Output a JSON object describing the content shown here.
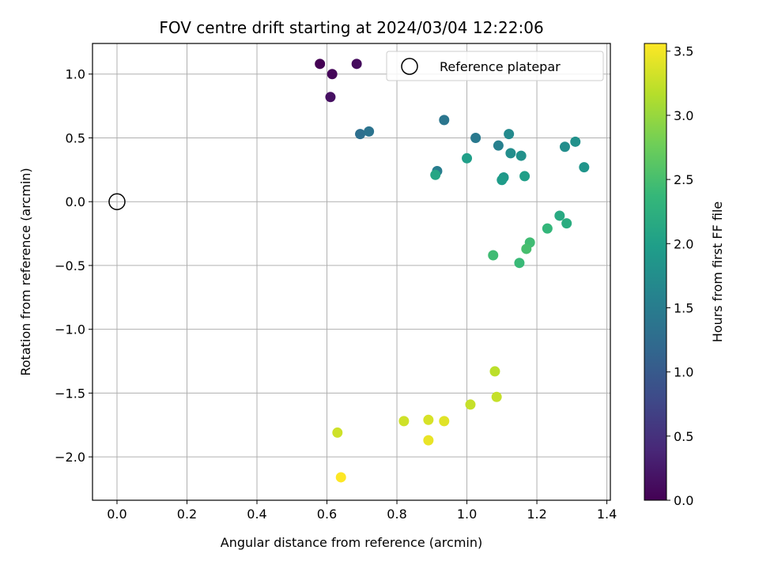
{
  "chart_data": {
    "type": "scatter",
    "title": "FOV centre drift starting at 2024/03/04 12:22:06",
    "xlabel": "Angular distance from reference (arcmin)",
    "ylabel": "Rotation from reference (arcmin)",
    "xlim": [
      -0.07,
      1.41
    ],
    "ylim": [
      -2.34,
      1.24
    ],
    "xticks": [
      0.0,
      0.2,
      0.4,
      0.6,
      0.8,
      1.0,
      1.2,
      1.4
    ],
    "xtick_labels": [
      "0.0",
      "0.2",
      "0.4",
      "0.6",
      "0.8",
      "1.0",
      "1.2",
      "1.4"
    ],
    "yticks": [
      1.0,
      0.5,
      0.0,
      -0.5,
      -1.0,
      -1.5,
      -2.0
    ],
    "ytick_labels": [
      "1.0",
      "0.5",
      "0.0",
      "−0.5",
      "−1.0",
      "−1.5",
      "−2.0"
    ],
    "grid": true,
    "legend_position": "top-right",
    "reference": {
      "label": "Reference platepar",
      "x": 0.0,
      "y": 0.0
    },
    "colorbar": {
      "label": "Hours from first FF file",
      "range": [
        0.0,
        3.56
      ],
      "ticks": [
        0.0,
        0.5,
        1.0,
        1.5,
        2.0,
        2.5,
        3.0,
        3.5
      ],
      "tick_labels": [
        "0.0",
        "0.5",
        "1.0",
        "1.5",
        "2.0",
        "2.5",
        "3.0",
        "3.5"
      ],
      "colormap": "viridis"
    },
    "points": [
      {
        "x": 0.58,
        "y": 1.08,
        "h": 0.0
      },
      {
        "x": 0.615,
        "y": 1.0,
        "h": 0.05
      },
      {
        "x": 0.685,
        "y": 1.08,
        "h": 0.1
      },
      {
        "x": 0.61,
        "y": 0.82,
        "h": 0.15
      },
      {
        "x": 0.695,
        "y": 0.53,
        "h": 1.3
      },
      {
        "x": 0.72,
        "y": 0.55,
        "h": 1.35
      },
      {
        "x": 0.935,
        "y": 0.64,
        "h": 1.4
      },
      {
        "x": 1.025,
        "y": 0.5,
        "h": 1.45
      },
      {
        "x": 0.915,
        "y": 0.24,
        "h": 1.5
      },
      {
        "x": 1.09,
        "y": 0.44,
        "h": 1.55
      },
      {
        "x": 1.12,
        "y": 0.53,
        "h": 1.7
      },
      {
        "x": 1.125,
        "y": 0.38,
        "h": 1.75
      },
      {
        "x": 1.155,
        "y": 0.36,
        "h": 1.8
      },
      {
        "x": 1.28,
        "y": 0.43,
        "h": 1.75
      },
      {
        "x": 1.31,
        "y": 0.47,
        "h": 1.8
      },
      {
        "x": 1.335,
        "y": 0.27,
        "h": 1.85
      },
      {
        "x": 1.105,
        "y": 0.19,
        "h": 1.9
      },
      {
        "x": 1.1,
        "y": 0.17,
        "h": 1.95
      },
      {
        "x": 1.165,
        "y": 0.2,
        "h": 2.0
      },
      {
        "x": 1.0,
        "y": 0.34,
        "h": 2.0
      },
      {
        "x": 0.91,
        "y": 0.21,
        "h": 2.1
      },
      {
        "x": 1.265,
        "y": -0.11,
        "h": 2.15
      },
      {
        "x": 1.285,
        "y": -0.17,
        "h": 2.2
      },
      {
        "x": 1.23,
        "y": -0.21,
        "h": 2.35
      },
      {
        "x": 1.18,
        "y": -0.32,
        "h": 2.45
      },
      {
        "x": 1.17,
        "y": -0.37,
        "h": 2.5
      },
      {
        "x": 1.15,
        "y": -0.48,
        "h": 2.4
      },
      {
        "x": 1.075,
        "y": -0.42,
        "h": 2.45
      },
      {
        "x": 1.08,
        "y": -1.33,
        "h": 3.2
      },
      {
        "x": 1.085,
        "y": -1.53,
        "h": 3.25
      },
      {
        "x": 1.01,
        "y": -1.59,
        "h": 3.25
      },
      {
        "x": 0.82,
        "y": -1.72,
        "h": 3.3
      },
      {
        "x": 0.89,
        "y": -1.71,
        "h": 3.35
      },
      {
        "x": 0.935,
        "y": -1.72,
        "h": 3.4
      },
      {
        "x": 0.89,
        "y": -1.87,
        "h": 3.45
      },
      {
        "x": 0.63,
        "y": -1.81,
        "h": 3.3
      },
      {
        "x": 0.64,
        "y": -2.16,
        "h": 3.56
      }
    ]
  }
}
